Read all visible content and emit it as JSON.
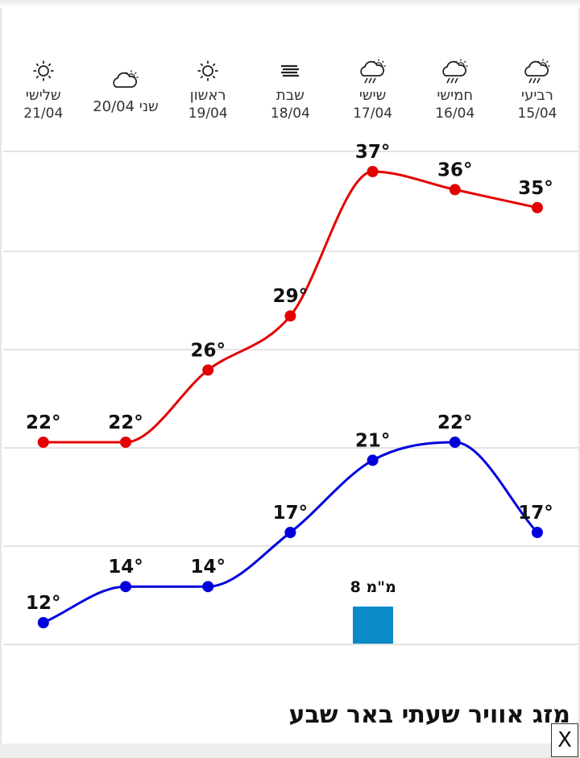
{
  "chart_data": {
    "type": "line",
    "categories": [
      {
        "day": "רביעי",
        "date": "15/04",
        "icon": "rain-sun-icon"
      },
      {
        "day": "חמישי",
        "date": "16/04",
        "icon": "rain-sun-icon"
      },
      {
        "day": "שישי",
        "date": "17/04",
        "icon": "rain-sun-icon"
      },
      {
        "day": "שבת",
        "date": "18/04",
        "icon": "haze-icon"
      },
      {
        "day": "ראשון",
        "date": "19/04",
        "icon": "sun-icon"
      },
      {
        "day": "שני 20/04",
        "date": "",
        "icon": "partly-cloudy-icon"
      },
      {
        "day": "שלישי",
        "date": "21/04",
        "icon": "sun-icon"
      }
    ],
    "series": [
      {
        "values": [
          35,
          36,
          37,
          29,
          26,
          22,
          22
        ],
        "color": "#e30000"
      },
      {
        "values": [
          17,
          22,
          21,
          17,
          14,
          14,
          12
        ],
        "color": "#0000dd"
      }
    ],
    "labels": {
      "high": [
        "35°",
        "36°",
        "37°",
        "29°",
        "26°",
        "22°",
        "22°"
      ],
      "low": [
        "17°",
        "22°",
        "21°",
        "17°",
        "14°",
        "14°",
        "12°"
      ]
    },
    "precipitation": {
      "day_index": 2,
      "label": "8 מ\"מ",
      "value_mm": 8,
      "color": "#0a8ac6"
    },
    "grid": true
  },
  "footer": {
    "title": "מזג אוויר שעתי באר שבע",
    "close_label": "X"
  }
}
